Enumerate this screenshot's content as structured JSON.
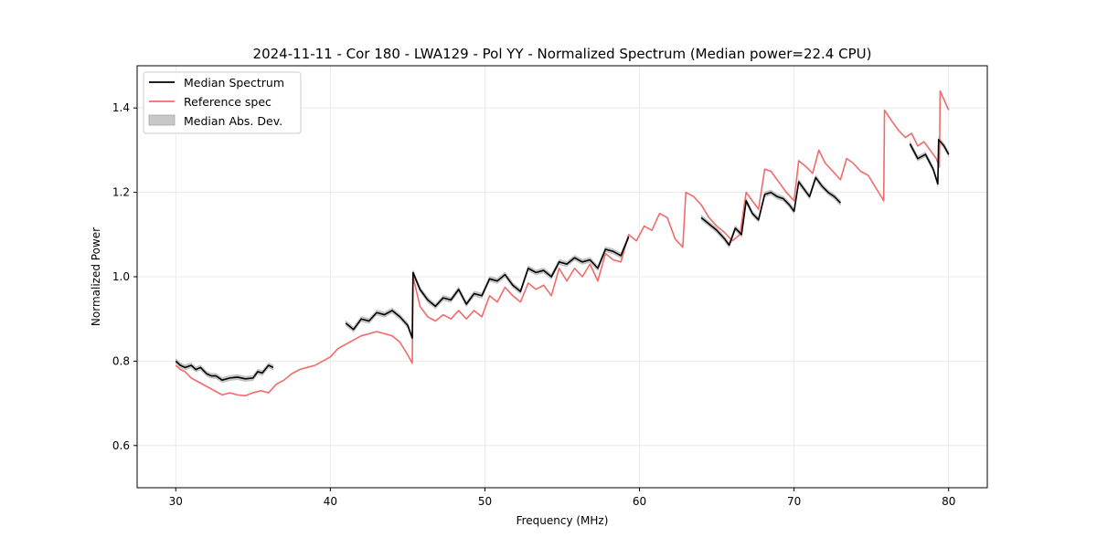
{
  "chart_data": {
    "type": "line",
    "title": "2024-11-11 - Cor 180 - LWA129 - Pol YY - Normalized Spectrum (Median power=22.4 CPU)",
    "xlabel": "Frequency (MHz)",
    "ylabel": "Normalized Power",
    "xlim": [
      27.5,
      82.5
    ],
    "ylim": [
      0.5,
      1.5
    ],
    "xticks": [
      30,
      40,
      50,
      60,
      70,
      80
    ],
    "yticks": [
      0.6,
      0.8,
      1.0,
      1.2,
      1.4
    ],
    "xtick_labels": [
      "30",
      "40",
      "50",
      "60",
      "70",
      "80"
    ],
    "ytick_labels": [
      "0.6",
      "0.8",
      "1.0",
      "1.2",
      "1.4"
    ],
    "grid": true,
    "legend_position": "top-left",
    "legend": [
      "Median Spectrum",
      "Reference spec",
      "Median Abs. Dev."
    ],
    "colors": {
      "median": "#000000",
      "reference": "#f26b6b",
      "mad": "#c8c8c8",
      "grid": "#e6e6e6"
    },
    "series": [
      {
        "name": "Median Spectrum",
        "segments": [
          {
            "x": [
              30.0,
              30.3,
              30.6,
              31.0,
              31.3,
              31.6,
              32.0,
              32.3,
              32.6,
              33.0,
              33.5,
              34.0,
              34.5,
              35.0,
              35.3,
              35.6,
              36.0,
              36.3
            ],
            "y": [
              0.8,
              0.79,
              0.785,
              0.79,
              0.78,
              0.785,
              0.77,
              0.765,
              0.765,
              0.755,
              0.76,
              0.762,
              0.758,
              0.76,
              0.775,
              0.772,
              0.79,
              0.785
            ]
          },
          {
            "x": [
              41.0,
              41.5,
              42.0,
              42.5,
              43.0,
              43.5,
              44.0,
              44.5,
              45.0,
              45.3,
              45.35,
              45.8,
              46.3,
              46.8,
              47.3,
              47.8,
              48.3,
              48.8,
              49.3,
              49.8,
              50.3,
              50.8,
              51.3,
              51.8,
              52.3,
              52.8,
              53.3,
              53.8,
              54.3,
              54.8,
              55.3,
              55.8,
              56.3,
              56.8,
              57.3,
              57.8,
              58.3,
              58.8,
              59.3
            ],
            "y": [
              0.89,
              0.875,
              0.9,
              0.895,
              0.915,
              0.91,
              0.92,
              0.905,
              0.885,
              0.855,
              1.01,
              0.97,
              0.945,
              0.93,
              0.95,
              0.945,
              0.97,
              0.935,
              0.96,
              0.955,
              0.995,
              0.99,
              1.005,
              0.98,
              0.965,
              1.02,
              1.01,
              1.015,
              1.0,
              1.035,
              1.03,
              1.045,
              1.035,
              1.04,
              1.02,
              1.065,
              1.06,
              1.05,
              1.095
            ]
          },
          {
            "x": [
              64.0,
              64.5,
              65.0,
              65.5,
              65.8,
              66.2,
              66.6,
              66.9,
              67.3,
              67.7,
              68.1,
              68.5,
              68.9,
              69.3,
              69.7,
              70.0,
              70.3,
              70.7,
              71.0,
              71.4,
              71.8,
              72.2,
              72.6,
              73.0
            ],
            "y": [
              1.14,
              1.125,
              1.11,
              1.09,
              1.075,
              1.115,
              1.1,
              1.18,
              1.15,
              1.135,
              1.195,
              1.2,
              1.19,
              1.185,
              1.17,
              1.155,
              1.225,
              1.205,
              1.19,
              1.235,
              1.215,
              1.2,
              1.19,
              1.175
            ]
          },
          {
            "x": [
              77.5,
              78.0,
              78.5,
              79.0,
              79.3,
              79.35,
              79.7,
              80.0
            ],
            "y": [
              1.315,
              1.28,
              1.29,
              1.255,
              1.22,
              1.325,
              1.31,
              1.29
            ]
          }
        ]
      },
      {
        "name": "Reference spec",
        "segments": [
          {
            "x": [
              30.0,
              30.3,
              30.6,
              31.0,
              31.5,
              32.0,
              32.5,
              33.0,
              33.5,
              34.0,
              34.5,
              35.0,
              35.5,
              36.0,
              36.5,
              37.0,
              37.5,
              38.0,
              38.5,
              39.0,
              39.5,
              40.0,
              40.5,
              41.0,
              41.5,
              42.0,
              42.5,
              43.0,
              43.5,
              44.0,
              44.5,
              45.0,
              45.3,
              45.35,
              45.8,
              46.3,
              46.8,
              47.3,
              47.8,
              48.3,
              48.8,
              49.3,
              49.8,
              50.3,
              50.8,
              51.3,
              51.8,
              52.3,
              52.8,
              53.3,
              53.8,
              54.3,
              54.8,
              55.3,
              55.8,
              56.3,
              56.8,
              57.3,
              57.8,
              58.3,
              58.8,
              59.3,
              59.8,
              60.3,
              60.8,
              61.3,
              61.8,
              62.3,
              62.8,
              63.0,
              63.5,
              64.0,
              64.5,
              65.0,
              65.5,
              66.0,
              66.5,
              66.9,
              67.3,
              67.7,
              68.1,
              68.5,
              69.0,
              69.5,
              70.0,
              70.3,
              70.8,
              71.2,
              71.6,
              72.0,
              72.5,
              73.0,
              73.4,
              73.8,
              74.3,
              74.8,
              75.3,
              75.8,
              75.85,
              76.3,
              76.8,
              77.2,
              77.6,
              78.0,
              78.4,
              78.8,
              79.2,
              79.4,
              79.45,
              80.0
            ],
            "y": [
              0.79,
              0.78,
              0.775,
              0.76,
              0.75,
              0.74,
              0.73,
              0.72,
              0.725,
              0.72,
              0.718,
              0.725,
              0.73,
              0.725,
              0.745,
              0.755,
              0.77,
              0.78,
              0.785,
              0.79,
              0.8,
              0.81,
              0.83,
              0.84,
              0.85,
              0.86,
              0.865,
              0.87,
              0.865,
              0.86,
              0.845,
              0.815,
              0.795,
              1.0,
              0.93,
              0.905,
              0.895,
              0.91,
              0.9,
              0.92,
              0.9,
              0.92,
              0.905,
              0.955,
              0.94,
              0.975,
              0.955,
              0.94,
              0.985,
              0.97,
              0.98,
              0.955,
              1.02,
              0.99,
              1.02,
              1.0,
              1.03,
              0.99,
              1.055,
              1.04,
              1.035,
              1.1,
              1.085,
              1.12,
              1.11,
              1.15,
              1.14,
              1.09,
              1.07,
              1.2,
              1.19,
              1.17,
              1.14,
              1.12,
              1.105,
              1.085,
              1.1,
              1.2,
              1.18,
              1.16,
              1.255,
              1.25,
              1.225,
              1.2,
              1.18,
              1.275,
              1.26,
              1.245,
              1.3,
              1.27,
              1.25,
              1.23,
              1.28,
              1.27,
              1.25,
              1.24,
              1.21,
              1.18,
              1.395,
              1.37,
              1.345,
              1.33,
              1.34,
              1.31,
              1.32,
              1.3,
              1.28,
              1.26,
              1.44,
              1.395
            ]
          }
        ]
      }
    ],
    "mad_halfwidth": 0.006
  }
}
